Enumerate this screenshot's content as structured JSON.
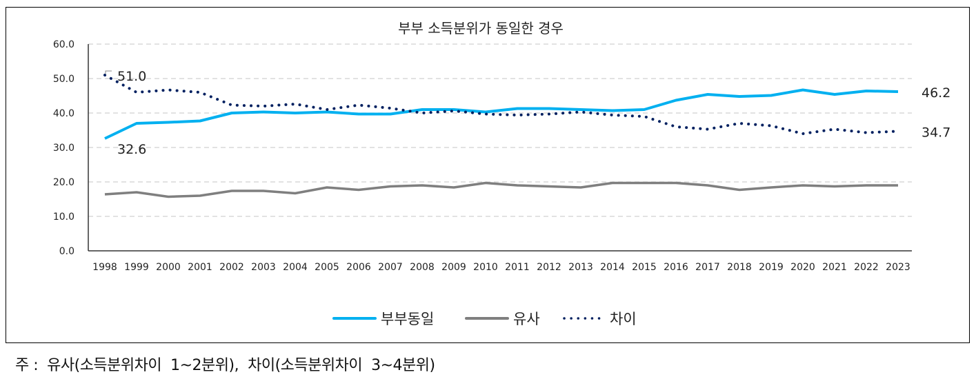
{
  "chart_data": {
    "type": "line",
    "title": "부부 소득분위가 동일한 경우",
    "xlabel": "",
    "ylabel": "",
    "x": [
      "1998",
      "1999",
      "2000",
      "2001",
      "2002",
      "2003",
      "2004",
      "2005",
      "2006",
      "2007",
      "2008",
      "2009",
      "2010",
      "2011",
      "2012",
      "2013",
      "2014",
      "2015",
      "2016",
      "2017",
      "2018",
      "2019",
      "2020",
      "2021",
      "2022",
      "2023"
    ],
    "ylim": [
      0,
      60
    ],
    "yticks": [
      "0.0",
      "10.0",
      "20.0",
      "30.0",
      "40.0",
      "50.0",
      "60.0"
    ],
    "grid": true,
    "legend_position": "bottom",
    "series": [
      {
        "name": "부부동일",
        "color": "#00B0F0",
        "style": "solid",
        "values": [
          32.6,
          37.0,
          37.3,
          37.7,
          40.0,
          40.3,
          40.0,
          40.3,
          39.7,
          39.7,
          41.0,
          41.0,
          40.3,
          41.3,
          41.3,
          41.0,
          40.7,
          41.0,
          43.7,
          45.4,
          44.8,
          45.1,
          46.7,
          45.4,
          46.4,
          46.2
        ]
      },
      {
        "name": "유사",
        "color": "#7F7F7F",
        "style": "solid",
        "values": [
          16.4,
          17.0,
          15.7,
          16.0,
          17.4,
          17.4,
          16.7,
          18.4,
          17.7,
          18.7,
          19.0,
          18.4,
          19.7,
          19.0,
          18.7,
          18.4,
          19.7,
          19.7,
          19.7,
          19.0,
          17.7,
          18.4,
          19.0,
          18.7,
          19.0,
          19.0
        ]
      },
      {
        "name": "차이",
        "color": "#002060",
        "style": "dotted",
        "values": [
          51.0,
          46.0,
          46.7,
          46.0,
          42.3,
          42.0,
          42.6,
          41.0,
          42.3,
          41.4,
          40.0,
          40.6,
          39.7,
          39.4,
          39.7,
          40.3,
          39.4,
          39.0,
          36.0,
          35.3,
          37.0,
          36.3,
          34.0,
          35.3,
          34.3,
          34.7
        ]
      }
    ],
    "annotations": [
      {
        "series": "차이",
        "x": "1998",
        "text": "51.0"
      },
      {
        "series": "부부동일",
        "x": "1998",
        "text": "32.6"
      },
      {
        "series": "부부동일",
        "x": "2023",
        "text": "46.2"
      },
      {
        "series": "차이",
        "x": "2023",
        "text": "34.7"
      }
    ]
  },
  "note": "주 :  유사(소득분위차이  1~2분위),  차이(소득분위차이  3~4분위)"
}
